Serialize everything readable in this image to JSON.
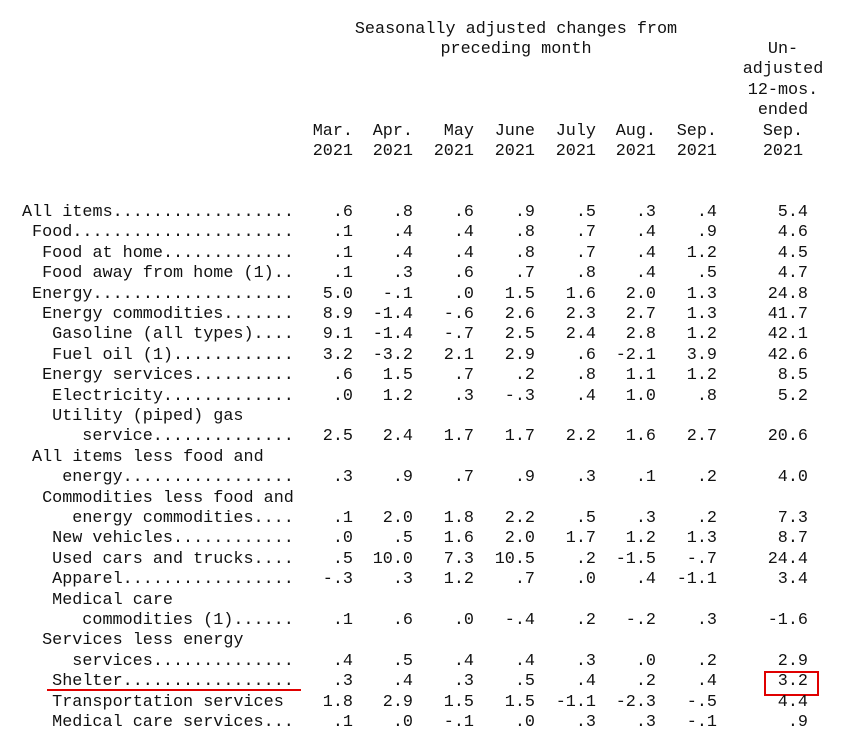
{
  "table": {
    "group_header": [
      "Seasonally adjusted changes from",
      "preceding month"
    ],
    "columns": [
      [
        "Mar.",
        "2021"
      ],
      [
        "Apr.",
        "2021"
      ],
      [
        "May",
        "2021"
      ],
      [
        "June",
        "2021"
      ],
      [
        "July",
        "2021"
      ],
      [
        "Aug.",
        "2021"
      ],
      [
        "Sep.",
        "2021"
      ],
      [
        "Un-",
        "adjusted",
        "12-mos.",
        "ended",
        "Sep.",
        "2021"
      ]
    ],
    "rows": [
      {
        "label": [
          "All items.................."
        ],
        "values": [
          ".6",
          ".8",
          ".6",
          ".9",
          ".5",
          ".3",
          ".4",
          "5.4"
        ]
      },
      {
        "label": [
          "Food......................"
        ],
        "values": [
          ".1",
          ".4",
          ".4",
          ".8",
          ".7",
          ".4",
          ".9",
          "4.6"
        ]
      },
      {
        "label": [
          "Food at home............."
        ],
        "values": [
          ".1",
          ".4",
          ".4",
          ".8",
          ".7",
          ".4",
          "1.2",
          "4.5"
        ]
      },
      {
        "label": [
          "Food away from home (1).."
        ],
        "values": [
          ".1",
          ".3",
          ".6",
          ".7",
          ".8",
          ".4",
          ".5",
          "4.7"
        ]
      },
      {
        "label": [
          "Energy...................."
        ],
        "values": [
          "5.0",
          "-.1",
          ".0",
          "1.5",
          "1.6",
          "2.0",
          "1.3",
          "24.8"
        ]
      },
      {
        "label": [
          "Energy commodities......."
        ],
        "values": [
          "8.9",
          "-1.4",
          "-.6",
          "2.6",
          "2.3",
          "2.7",
          "1.3",
          "41.7"
        ]
      },
      {
        "label": [
          "Gasoline (all types)...."
        ],
        "values": [
          "9.1",
          "-1.4",
          "-.7",
          "2.5",
          "2.4",
          "2.8",
          "1.2",
          "42.1"
        ]
      },
      {
        "label": [
          "Fuel oil (1)............"
        ],
        "values": [
          "3.2",
          "-3.2",
          "2.1",
          "2.9",
          ".6",
          "-2.1",
          "3.9",
          "42.6"
        ]
      },
      {
        "label": [
          "Energy services.........."
        ],
        "values": [
          ".6",
          "1.5",
          ".7",
          ".2",
          ".8",
          "1.1",
          "1.2",
          "8.5"
        ]
      },
      {
        "label": [
          "Electricity............."
        ],
        "values": [
          ".0",
          "1.2",
          ".3",
          "-.3",
          ".4",
          "1.0",
          ".8",
          "5.2"
        ]
      },
      {
        "label": [
          "Utility (piped) gas",
          "service.............."
        ],
        "values": [
          "2.5",
          "2.4",
          "1.7",
          "1.7",
          "2.2",
          "1.6",
          "2.7",
          "20.6"
        ]
      },
      {
        "label": [
          "All items less food and",
          "energy................."
        ],
        "values": [
          ".3",
          ".9",
          ".7",
          ".9",
          ".3",
          ".1",
          ".2",
          "4.0"
        ]
      },
      {
        "label": [
          "Commodities less food and",
          "energy commodities...."
        ],
        "values": [
          ".1",
          "2.0",
          "1.8",
          "2.2",
          ".5",
          ".3",
          ".2",
          "7.3"
        ]
      },
      {
        "label": [
          "New vehicles............"
        ],
        "values": [
          ".0",
          ".5",
          "1.6",
          "2.0",
          "1.7",
          "1.2",
          "1.3",
          "8.7"
        ]
      },
      {
        "label": [
          "Used cars and trucks...."
        ],
        "values": [
          ".5",
          "10.0",
          "7.3",
          "10.5",
          ".2",
          "-1.5",
          "-.7",
          "24.4"
        ]
      },
      {
        "label": [
          "Apparel................."
        ],
        "values": [
          "-.3",
          ".3",
          "1.2",
          ".7",
          ".0",
          ".4",
          "-1.1",
          "3.4"
        ]
      },
      {
        "label": [
          "Medical care",
          "commodities (1)......"
        ],
        "values": [
          ".1",
          ".6",
          ".0",
          "-.4",
          ".2",
          "-.2",
          ".3",
          "-1.6"
        ]
      },
      {
        "label": [
          "Services less energy",
          "services.............."
        ],
        "values": [
          ".4",
          ".5",
          ".4",
          ".4",
          ".3",
          ".0",
          ".2",
          "2.9"
        ]
      },
      {
        "label": [
          "Shelter................."
        ],
        "values": [
          ".3",
          ".4",
          ".3",
          ".5",
          ".4",
          ".2",
          ".4",
          "3.2"
        ]
      },
      {
        "label": [
          "Transportation services"
        ],
        "values": [
          "1.8",
          "2.9",
          "1.5",
          "1.5",
          "-1.1",
          "-2.3",
          "-.5",
          "4.4"
        ]
      },
      {
        "label": [
          "Medical care services..."
        ],
        "values": [
          ".1",
          ".0",
          "-.1",
          ".0",
          ".3",
          ".3",
          "-.1",
          ".9"
        ]
      }
    ]
  }
}
